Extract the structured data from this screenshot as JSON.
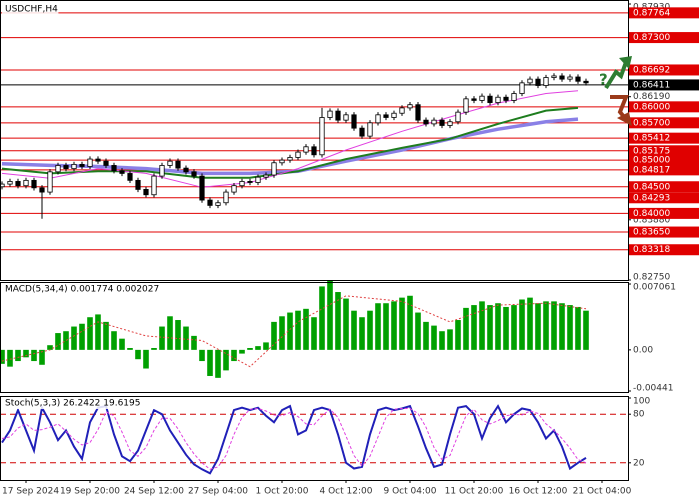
{
  "chart_data": [
    {
      "type": "candlestick",
      "title": "USDCHF,H4",
      "xlim": [
        -0.25,
        78.25
      ],
      "ylim": [
        0.8275,
        0.8793
      ],
      "yticks": [
        {
          "value": 0.8793,
          "label": "0.87930"
        },
        {
          "value": 0.8619,
          "label": "0.86190"
        },
        {
          "value": 0.8388,
          "label": "0.83880"
        },
        {
          "value": 0.8275,
          "label": "0.82750"
        }
      ],
      "levels": [
        {
          "value": 0.87764,
          "label": "0.87764",
          "color": "#e00000"
        },
        {
          "value": 0.873,
          "label": "0.87300",
          "color": "#e00000"
        },
        {
          "value": 0.86692,
          "label": "0.86692",
          "color": "#e00000"
        },
        {
          "value": 0.86411,
          "label": "0.86411",
          "color": "#000000"
        },
        {
          "value": 0.86,
          "label": "0.86000",
          "color": "#e00000"
        },
        {
          "value": 0.857,
          "label": "0.85700",
          "color": "#e00000"
        },
        {
          "value": 0.85412,
          "label": "0.85412",
          "color": "#e00000"
        },
        {
          "value": 0.85175,
          "label": "0.85175",
          "color": "#e00000"
        },
        {
          "value": 0.85,
          "label": "0.85000",
          "color": "#e00000"
        },
        {
          "value": 0.84817,
          "label": "0.84817",
          "color": "#e00000"
        },
        {
          "value": 0.845,
          "label": "0.84500",
          "color": "#e00000"
        },
        {
          "value": 0.84293,
          "label": "0.84293",
          "color": "#e00000"
        },
        {
          "value": 0.84,
          "label": "0.84000",
          "color": "#e00000"
        },
        {
          "value": 0.8365,
          "label": "0.83650",
          "color": "#e00000"
        },
        {
          "value": 0.83318,
          "label": "0.83318",
          "color": "#e00000"
        }
      ],
      "up_color": "#ffffff",
      "down_color": "#000000",
      "open": [
        0.845,
        0.8455,
        0.846,
        0.8452,
        0.8462,
        0.8448,
        0.844,
        0.8478,
        0.849,
        0.8484,
        0.8492,
        0.8488,
        0.8502,
        0.8498,
        0.849,
        0.848,
        0.8475,
        0.8462,
        0.8445,
        0.8435,
        0.847,
        0.849,
        0.8498,
        0.8485,
        0.8478,
        0.847,
        0.8425,
        0.8415,
        0.842,
        0.844,
        0.8452,
        0.846,
        0.8458,
        0.8468,
        0.8472,
        0.8495,
        0.85,
        0.8505,
        0.8515,
        0.8525,
        0.851,
        0.858,
        0.8592,
        0.8575,
        0.8585,
        0.856,
        0.8545,
        0.857,
        0.8585,
        0.858,
        0.8588,
        0.8598,
        0.8604,
        0.8575,
        0.8568,
        0.8575,
        0.8565,
        0.8572,
        0.859,
        0.8615,
        0.8612,
        0.862,
        0.8608,
        0.8618,
        0.8612,
        0.8625,
        0.8645,
        0.8652,
        0.864,
        0.8655,
        0.8658,
        0.8652,
        0.8656,
        0.8648
      ],
      "high": [
        0.846,
        0.8465,
        0.8465,
        0.8467,
        0.8467,
        0.8453,
        0.8483,
        0.8495,
        0.8495,
        0.8497,
        0.8497,
        0.8507,
        0.8507,
        0.8503,
        0.8495,
        0.8485,
        0.848,
        0.8467,
        0.845,
        0.8475,
        0.8495,
        0.8503,
        0.8503,
        0.849,
        0.8483,
        0.8475,
        0.843,
        0.8425,
        0.8445,
        0.8457,
        0.8465,
        0.8465,
        0.8473,
        0.8477,
        0.85,
        0.8505,
        0.851,
        0.852,
        0.853,
        0.853,
        0.8598,
        0.8597,
        0.8597,
        0.859,
        0.859,
        0.8565,
        0.8575,
        0.859,
        0.859,
        0.8593,
        0.8603,
        0.8609,
        0.8609,
        0.858,
        0.858,
        0.858,
        0.8577,
        0.8595,
        0.862,
        0.862,
        0.8625,
        0.8625,
        0.8623,
        0.8623,
        0.863,
        0.865,
        0.8657,
        0.8657,
        0.866,
        0.8663,
        0.8663,
        0.8661,
        0.8661,
        0.8653
      ],
      "low": [
        0.8445,
        0.845,
        0.8447,
        0.8447,
        0.8443,
        0.839,
        0.8435,
        0.8473,
        0.8479,
        0.8479,
        0.8483,
        0.8483,
        0.8493,
        0.8485,
        0.8475,
        0.847,
        0.8457,
        0.844,
        0.843,
        0.843,
        0.8465,
        0.8485,
        0.848,
        0.8473,
        0.8465,
        0.842,
        0.841,
        0.841,
        0.8415,
        0.8435,
        0.8447,
        0.8453,
        0.8453,
        0.8463,
        0.8467,
        0.849,
        0.8495,
        0.85,
        0.851,
        0.8505,
        0.8505,
        0.8575,
        0.857,
        0.857,
        0.8555,
        0.854,
        0.854,
        0.8565,
        0.8575,
        0.8575,
        0.8583,
        0.8593,
        0.857,
        0.8563,
        0.8563,
        0.856,
        0.856,
        0.8567,
        0.8585,
        0.8607,
        0.8607,
        0.8603,
        0.8603,
        0.8607,
        0.8607,
        0.862,
        0.864,
        0.8635,
        0.8635,
        0.865,
        0.8647,
        0.8647,
        0.8643,
        0.864
      ],
      "close": [
        0.8455,
        0.846,
        0.8452,
        0.8462,
        0.8448,
        0.844,
        0.8478,
        0.849,
        0.8484,
        0.8492,
        0.8488,
        0.8502,
        0.8498,
        0.849,
        0.848,
        0.8475,
        0.8462,
        0.8445,
        0.8435,
        0.847,
        0.849,
        0.8498,
        0.8485,
        0.8478,
        0.847,
        0.8425,
        0.8415,
        0.842,
        0.844,
        0.8452,
        0.846,
        0.8458,
        0.8468,
        0.8472,
        0.8495,
        0.85,
        0.8505,
        0.8515,
        0.8525,
        0.851,
        0.858,
        0.8592,
        0.8575,
        0.8585,
        0.856,
        0.8545,
        0.857,
        0.8585,
        0.858,
        0.8588,
        0.8598,
        0.8604,
        0.8575,
        0.8568,
        0.8575,
        0.8565,
        0.8572,
        0.859,
        0.8615,
        0.8612,
        0.862,
        0.8608,
        0.8618,
        0.8612,
        0.8625,
        0.8645,
        0.8652,
        0.864,
        0.8655,
        0.8658,
        0.8652,
        0.8656,
        0.8648,
        0.8645
      ],
      "series": [
        {
          "color": "#8a80e6",
          "x": [
            0,
            6,
            12,
            18,
            25,
            31,
            37,
            43,
            50,
            56,
            62,
            68,
            72
          ],
          "values": [
            0.8493,
            0.849,
            0.8488,
            0.8484,
            0.8475,
            0.8475,
            0.8479,
            0.8498,
            0.8519,
            0.854,
            0.8558,
            0.8572,
            0.8577
          ]
        },
        {
          "color": "#1e7d1e",
          "x": [
            0,
            6,
            12,
            18,
            25,
            31,
            37,
            43,
            50,
            56,
            62,
            68,
            72
          ],
          "values": [
            0.8484,
            0.8475,
            0.8479,
            0.8479,
            0.8467,
            0.8467,
            0.8479,
            0.8502,
            0.8523,
            0.854,
            0.8568,
            0.8593,
            0.8598
          ]
        },
        {
          "color": "#e040e0",
          "x": [
            0,
            6,
            12,
            18,
            25,
            31,
            37,
            43,
            50,
            56,
            62,
            68,
            72
          ],
          "values": [
            0.8475,
            0.8466,
            0.8484,
            0.8475,
            0.8449,
            0.8458,
            0.8484,
            0.8519,
            0.8554,
            0.8581,
            0.8607,
            0.8625,
            0.863
          ]
        }
      ]
    },
    {
      "type": "macd",
      "title": "MACD(5,34,4) 0.001774 0.002027",
      "xlim": [
        -0.25,
        78.25
      ],
      "ylim": [
        -0.00441,
        0.007061
      ],
      "yticks": [
        0.007061,
        {
          "value": 0,
          "label": "0.00"
        },
        -0.00441
      ],
      "color": "#00a000",
      "values": [
        -0.0015,
        -0.0018,
        -0.0012,
        -0.0008,
        -0.0012,
        -0.0016,
        0.0005,
        0.0018,
        0.002,
        0.0025,
        0.0028,
        0.0035,
        0.0038,
        0.003,
        0.002,
        0.0012,
        0.0002,
        -0.001,
        -0.002,
        0.0002,
        0.0025,
        0.0036,
        0.0032,
        0.0025,
        0.0015,
        -0.0012,
        -0.0028,
        -0.003,
        -0.0022,
        -0.0012,
        -0.0004,
        0.0002,
        0.0004,
        0.0008,
        0.003,
        0.0036,
        0.004,
        0.0042,
        0.0044,
        0.0035,
        0.0068,
        0.0074,
        0.0062,
        0.0055,
        0.0042,
        0.0035,
        0.0042,
        0.005,
        0.005,
        0.0052,
        0.0056,
        0.0058,
        0.004,
        0.003,
        0.0026,
        0.002,
        0.0022,
        0.0032,
        0.0045,
        0.0048,
        0.0052,
        0.0048,
        0.005,
        0.0046,
        0.0048,
        0.0054,
        0.0056,
        0.005,
        0.0052,
        0.0052,
        0.005,
        0.0048,
        0.0046,
        0.0042
      ],
      "series": [
        {
          "color": "#e04040",
          "x": [
            0,
            6,
            12,
            18,
            25,
            31,
            37,
            43,
            50,
            56,
            62,
            68,
            73
          ],
          "values": [
            -0.0012,
            0.0,
            0.003,
            0.0015,
            0.001,
            -0.0018,
            0.003,
            0.0058,
            0.0052,
            0.003,
            0.0048,
            0.005,
            0.0044
          ]
        }
      ]
    },
    {
      "type": "stochastic",
      "title": "Stoch(5,3,3) 26.2422 19.6195",
      "xlim": [
        -0.25,
        78.25
      ],
      "ylim": [
        0,
        100
      ],
      "yticks": [
        100,
        80,
        20
      ],
      "levels": [
        80,
        20
      ],
      "level_color": "#d00000",
      "xticks": [
        {
          "value": 3,
          "label": "17 Sep 2024"
        },
        {
          "value": 11,
          "label": "19 Sep 20:00"
        },
        {
          "value": 19,
          "label": "24 Sep 12:00"
        },
        {
          "value": 27,
          "label": "27 Sep 04:00"
        },
        {
          "value": 35,
          "label": "1 Oct 20:00"
        },
        {
          "value": 43,
          "label": "4 Oct 12:00"
        },
        {
          "value": 51,
          "label": "9 Oct 04:00"
        },
        {
          "value": 59,
          "label": "11 Oct 20:00"
        },
        {
          "value": 67,
          "label": "16 Oct 12:00"
        },
        {
          "value": 75,
          "label": "21 Oct 04:00"
        }
      ],
      "series": [
        {
          "color": "#2020b8",
          "values": [
            45,
            60,
            85,
            60,
            35,
            88,
            70,
            48,
            60,
            40,
            25,
            70,
            88,
            90,
            55,
            28,
            22,
            35,
            60,
            85,
            80,
            60,
            45,
            30,
            18,
            12,
            7,
            25,
            55,
            85,
            88,
            85,
            88,
            78,
            70,
            85,
            90,
            55,
            60,
            85,
            88,
            85,
            55,
            20,
            13,
            15,
            55,
            85,
            88,
            85,
            87,
            90,
            65,
            38,
            15,
            18,
            55,
            88,
            90,
            80,
            50,
            75,
            90,
            70,
            80,
            87,
            85,
            70,
            50,
            60,
            40,
            13,
            20,
            26
          ]
        },
        {
          "color": "#e040e0",
          "values": [
            50,
            52,
            63,
            68,
            60,
            61,
            64,
            68,
            59,
            49,
            42,
            45,
            61,
            83,
            78,
            58,
            35,
            28,
            39,
            60,
            75,
            75,
            62,
            45,
            31,
            20,
            12,
            15,
            29,
            55,
            76,
            86,
            87,
            84,
            79,
            78,
            82,
            77,
            68,
            67,
            78,
            86,
            76,
            53,
            29,
            16,
            28,
            52,
            76,
            86,
            87,
            87,
            81,
            64,
            39,
            24,
            29,
            54,
            78,
            86,
            73,
            68,
            72,
            78,
            80,
            79,
            84,
            81,
            68,
            60,
            50,
            38,
            24,
            20
          ]
        }
      ]
    }
  ]
}
